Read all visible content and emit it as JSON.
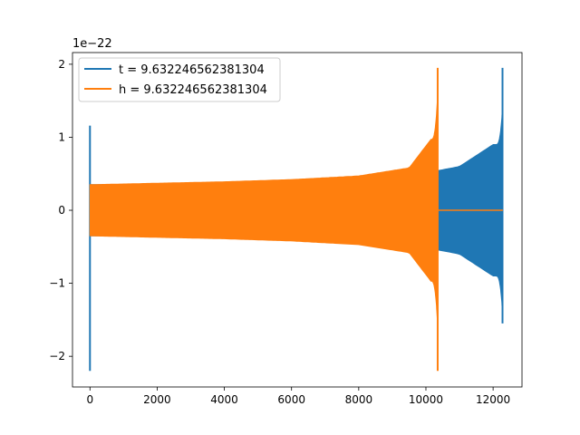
{
  "chart_data": {
    "type": "line",
    "title": "",
    "xlabel": "",
    "ylabel": "",
    "y_offset_label": "1e−22",
    "xlim": [
      -520,
      12860
    ],
    "ylim": [
      -2.42,
      2.16
    ],
    "x_ticks": [
      0,
      2000,
      4000,
      6000,
      8000,
      10000,
      12000
    ],
    "x_tick_labels": [
      "0",
      "2000",
      "4000",
      "6000",
      "8000",
      "10000",
      "12000"
    ],
    "y_ticks": [
      -2,
      -1,
      0,
      1,
      2
    ],
    "y_tick_labels": [
      "−2",
      "−1",
      "0",
      "1",
      "2"
    ],
    "grid": false,
    "legend_position": "upper-left",
    "series": [
      {
        "name": "t = 9.632246562381304",
        "color": "#1f77b4",
        "glitch_x": 0,
        "glitch_min": -2.2,
        "glitch_max": 1.16,
        "x_start": 0,
        "x_end": 12290,
        "merger_x": 12280,
        "amp_start": 0.35,
        "amp_merger": 1.95,
        "amp_merger_min": -1.55,
        "samples": [
          {
            "x": 0,
            "amp": 0.35
          },
          {
            "x": 2000,
            "amp": 0.36
          },
          {
            "x": 4000,
            "amp": 0.38
          },
          {
            "x": 6000,
            "amp": 0.41
          },
          {
            "x": 8000,
            "amp": 0.45
          },
          {
            "x": 10000,
            "amp": 0.51
          },
          {
            "x": 11000,
            "amp": 0.6
          },
          {
            "x": 12000,
            "amp": 0.9
          }
        ]
      },
      {
        "name": "h = 9.632246562381304",
        "color": "#ff7f0e",
        "x_start": 0,
        "x_end": 10350,
        "merger_x": 10350,
        "amp_start": 0.35,
        "amp_merger": 1.95,
        "amp_merger_min": -2.2,
        "tail_x_end": 12290,
        "tail_value": 0,
        "samples": [
          {
            "x": 0,
            "amp": 0.35
          },
          {
            "x": 2000,
            "amp": 0.37
          },
          {
            "x": 4000,
            "amp": 0.39
          },
          {
            "x": 6000,
            "amp": 0.42
          },
          {
            "x": 8000,
            "amp": 0.47
          },
          {
            "x": 9500,
            "amp": 0.58
          },
          {
            "x": 10200,
            "amp": 1.0
          }
        ]
      }
    ]
  }
}
